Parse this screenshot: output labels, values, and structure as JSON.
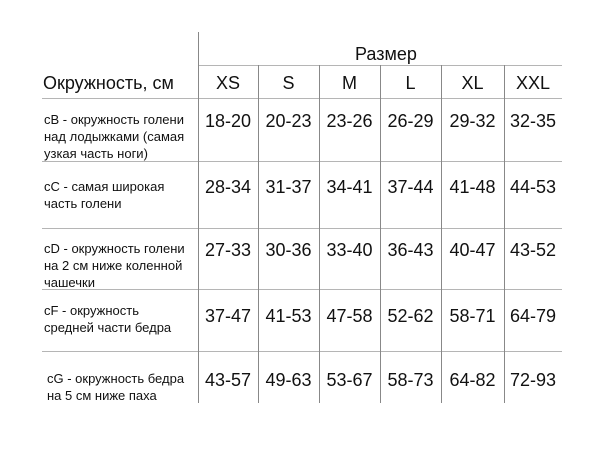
{
  "table": {
    "size_header": "Размер",
    "measure_header": "Окружность, см",
    "sizes": [
      "XS",
      "S",
      "M",
      "L",
      "XL",
      "XXL"
    ],
    "rows": [
      {
        "label_lines": [
          "cB - окружность голени",
          "над лодыжками (самая",
          "узкая часть ноги)"
        ],
        "values": [
          "18-20",
          "20-23",
          "23-26",
          "26-29",
          "29-32",
          "32-35"
        ]
      },
      {
        "label_lines": [
          "cC - самая широкая",
          "часть голени"
        ],
        "values": [
          "28-34",
          "31-37",
          "34-41",
          "37-44",
          "41-48",
          "44-53"
        ]
      },
      {
        "label_lines": [
          "cD - окружность голени",
          "на 2 см ниже коленной",
          "чашечки"
        ],
        "values": [
          "27-33",
          "30-36",
          "33-40",
          "36-43",
          "40-47",
          "43-52"
        ]
      },
      {
        "label_lines": [
          "cF - окружность",
          "средней части бедра"
        ],
        "values": [
          "37-47",
          "41-53",
          "47-58",
          "52-62",
          "58-71",
          "64-79"
        ]
      },
      {
        "label_lines": [
          "cG - окружность бедра",
          "на 5 см ниже паха"
        ],
        "values": [
          "43-57",
          "49-63",
          "53-67",
          "58-73",
          "64-82",
          "72-93"
        ]
      }
    ]
  }
}
